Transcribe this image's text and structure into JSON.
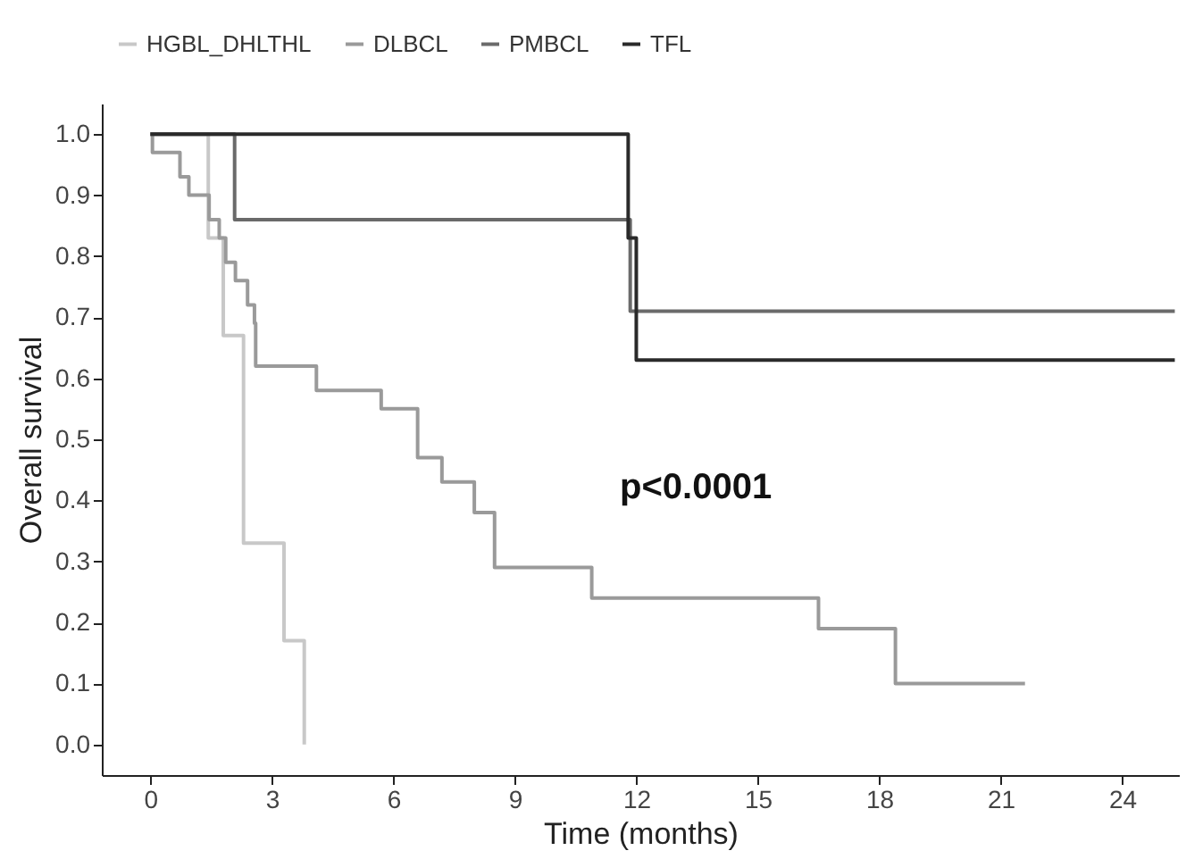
{
  "chart_data": {
    "type": "step",
    "xlabel": "Time (months)",
    "ylabel": "Overall survival",
    "legend": "top",
    "grid": false,
    "marker": "none",
    "xlim": [
      -1.2,
      25.4
    ],
    "ylim": [
      -0.05,
      1.05
    ],
    "xticks": [
      0,
      3,
      6,
      9,
      12,
      15,
      18,
      21,
      24
    ],
    "yticks": [
      {
        "value": 0,
        "label": "0.0"
      },
      0.1,
      0.2,
      0.3,
      0.4,
      0.5,
      0.6,
      0.7,
      0.8,
      0.9,
      {
        "value": 1,
        "label": "1.0"
      }
    ],
    "annotations": [
      "p<0.0001"
    ],
    "series": [
      {
        "name": "HGBL_DHLTHL",
        "color": "#c8c8c8",
        "x": [
          0,
          1.43,
          1.8,
          2.3,
          3.3,
          3.8
        ],
        "values": [
          1.0,
          0.83,
          0.67,
          0.33,
          0.17,
          0.0
        ]
      },
      {
        "name": "DLBCL",
        "color": "#9a9a9a",
        "x": [
          0,
          0.05,
          0.73,
          0.95,
          1.45,
          1.7,
          1.86,
          2.1,
          2.4,
          2.57,
          2.6,
          4.1,
          5.7,
          6.6,
          7.2,
          8.0,
          8.5,
          10.9,
          16.5,
          18.4,
          21.6
        ],
        "values": [
          1.0,
          0.97,
          0.93,
          0.9,
          0.86,
          0.83,
          0.79,
          0.76,
          0.72,
          0.69,
          0.62,
          0.58,
          0.55,
          0.47,
          0.43,
          0.38,
          0.29,
          0.24,
          0.19,
          0.1,
          0.1
        ]
      },
      {
        "name": "PMBCL",
        "color": "#6a6a6a",
        "x": [
          0,
          2.08,
          11.85,
          25.3
        ],
        "values": [
          1.0,
          0.86,
          0.71,
          0.71
        ]
      },
      {
        "name": "TFL",
        "color": "#2a2a2a",
        "x": [
          0,
          11.8,
          12.0,
          25.3
        ],
        "values": [
          1.0,
          0.83,
          0.63,
          0.63
        ]
      }
    ]
  }
}
